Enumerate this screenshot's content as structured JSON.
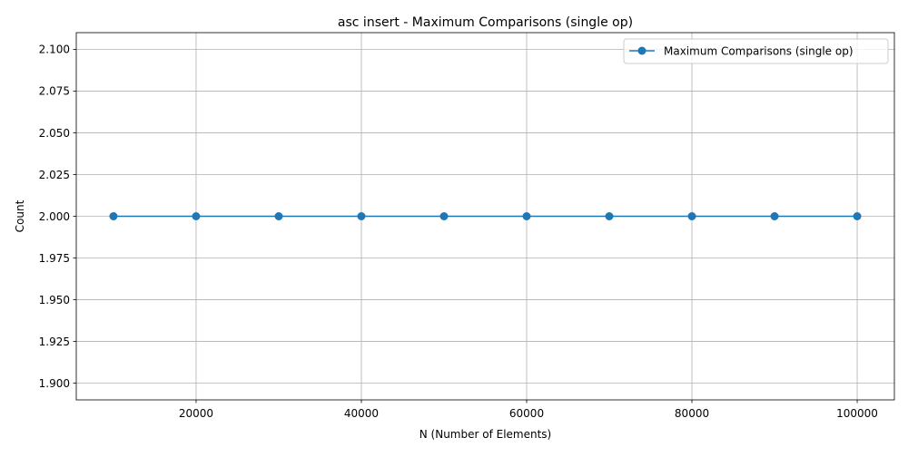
{
  "chart_data": {
    "type": "line",
    "title": "asc insert - Maximum Comparisons (single op)",
    "xlabel": "N (Number of Elements)",
    "ylabel": "Count",
    "x": [
      10000,
      20000,
      30000,
      40000,
      50000,
      60000,
      70000,
      80000,
      90000,
      100000
    ],
    "series": [
      {
        "name": "Maximum Comparisons (single op)",
        "values": [
          2,
          2,
          2,
          2,
          2,
          2,
          2,
          2,
          2,
          2
        ],
        "color": "#1f77b4",
        "marker": "circle"
      }
    ],
    "xlim": [
      5500,
      104500
    ],
    "ylim": [
      1.89,
      2.11
    ],
    "xticks": [
      20000,
      40000,
      60000,
      80000,
      100000
    ],
    "xtick_labels": [
      "20000",
      "40000",
      "60000",
      "80000",
      "100000"
    ],
    "yticks": [
      1.9,
      1.925,
      1.95,
      1.975,
      2.0,
      2.025,
      2.05,
      2.075,
      2.1
    ],
    "ytick_labels": [
      "1.900",
      "1.925",
      "1.950",
      "1.975",
      "2.000",
      "2.025",
      "2.050",
      "2.075",
      "2.100"
    ],
    "grid": true,
    "legend_position": "top-right"
  }
}
